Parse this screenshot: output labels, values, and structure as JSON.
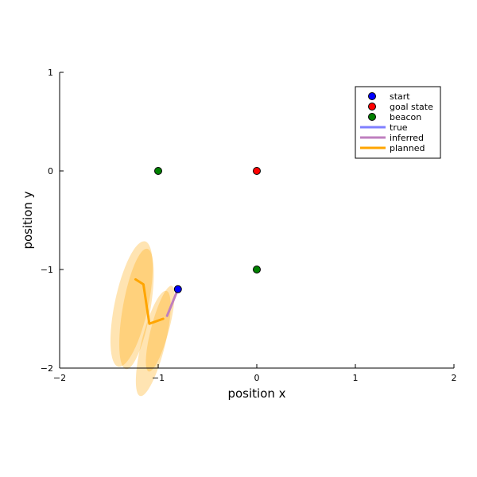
{
  "chart_data": {
    "type": "scatter",
    "title": "",
    "xlabel": "position x",
    "ylabel": "position y",
    "xlim": [
      -2,
      2
    ],
    "ylim": [
      -2,
      1
    ],
    "xticks": [
      -2,
      -1,
      0,
      1,
      2
    ],
    "yticks": [
      -2,
      -1,
      0,
      1
    ],
    "xtick_labels": [
      "−2",
      "−1",
      "0",
      "1",
      "2"
    ],
    "ytick_labels": [
      "−2",
      "−1",
      "0",
      "1"
    ],
    "grid": false,
    "legend_position": "top-right",
    "series": [
      {
        "name": "start",
        "kind": "marker",
        "color": "#0000ff",
        "points": [
          [
            -0.8,
            -1.2
          ]
        ]
      },
      {
        "name": "goal state",
        "kind": "marker",
        "color": "#ff0000",
        "points": [
          [
            0,
            0
          ]
        ]
      },
      {
        "name": "beacon",
        "kind": "marker",
        "color": "#008000",
        "points": [
          [
            -1,
            0
          ],
          [
            0,
            -1
          ]
        ]
      },
      {
        "name": "true",
        "kind": "line",
        "color": "#7f7fff",
        "points": []
      },
      {
        "name": "inferred",
        "kind": "line",
        "color": "#bf7fbf",
        "points": [
          [
            -0.8,
            -1.2
          ],
          [
            -0.91,
            -1.47
          ]
        ]
      },
      {
        "name": "planned",
        "kind": "line",
        "color": "#ffa500",
        "points": [
          [
            -1.23,
            -1.1
          ],
          [
            -1.15,
            -1.15
          ],
          [
            -1.09,
            -1.55
          ],
          [
            -0.95,
            -1.5
          ]
        ]
      }
    ],
    "uncertainty_ellipses": {
      "color": "#ffa500",
      "opacity": 0.3,
      "items": [
        {
          "center": [
            -1.27,
            -1.35
          ],
          "rx": 0.17,
          "ry": 0.65,
          "angle_deg": 12
        },
        {
          "center": [
            -1.22,
            -1.4
          ],
          "rx": 0.14,
          "ry": 0.62,
          "angle_deg": 10
        },
        {
          "center": [
            -1.05,
            -1.75
          ],
          "rx": 0.12,
          "ry": 0.55,
          "angle_deg": 14
        },
        {
          "center": [
            -0.98,
            -1.6
          ],
          "rx": 0.09,
          "ry": 0.45,
          "angle_deg": 15
        }
      ]
    }
  }
}
